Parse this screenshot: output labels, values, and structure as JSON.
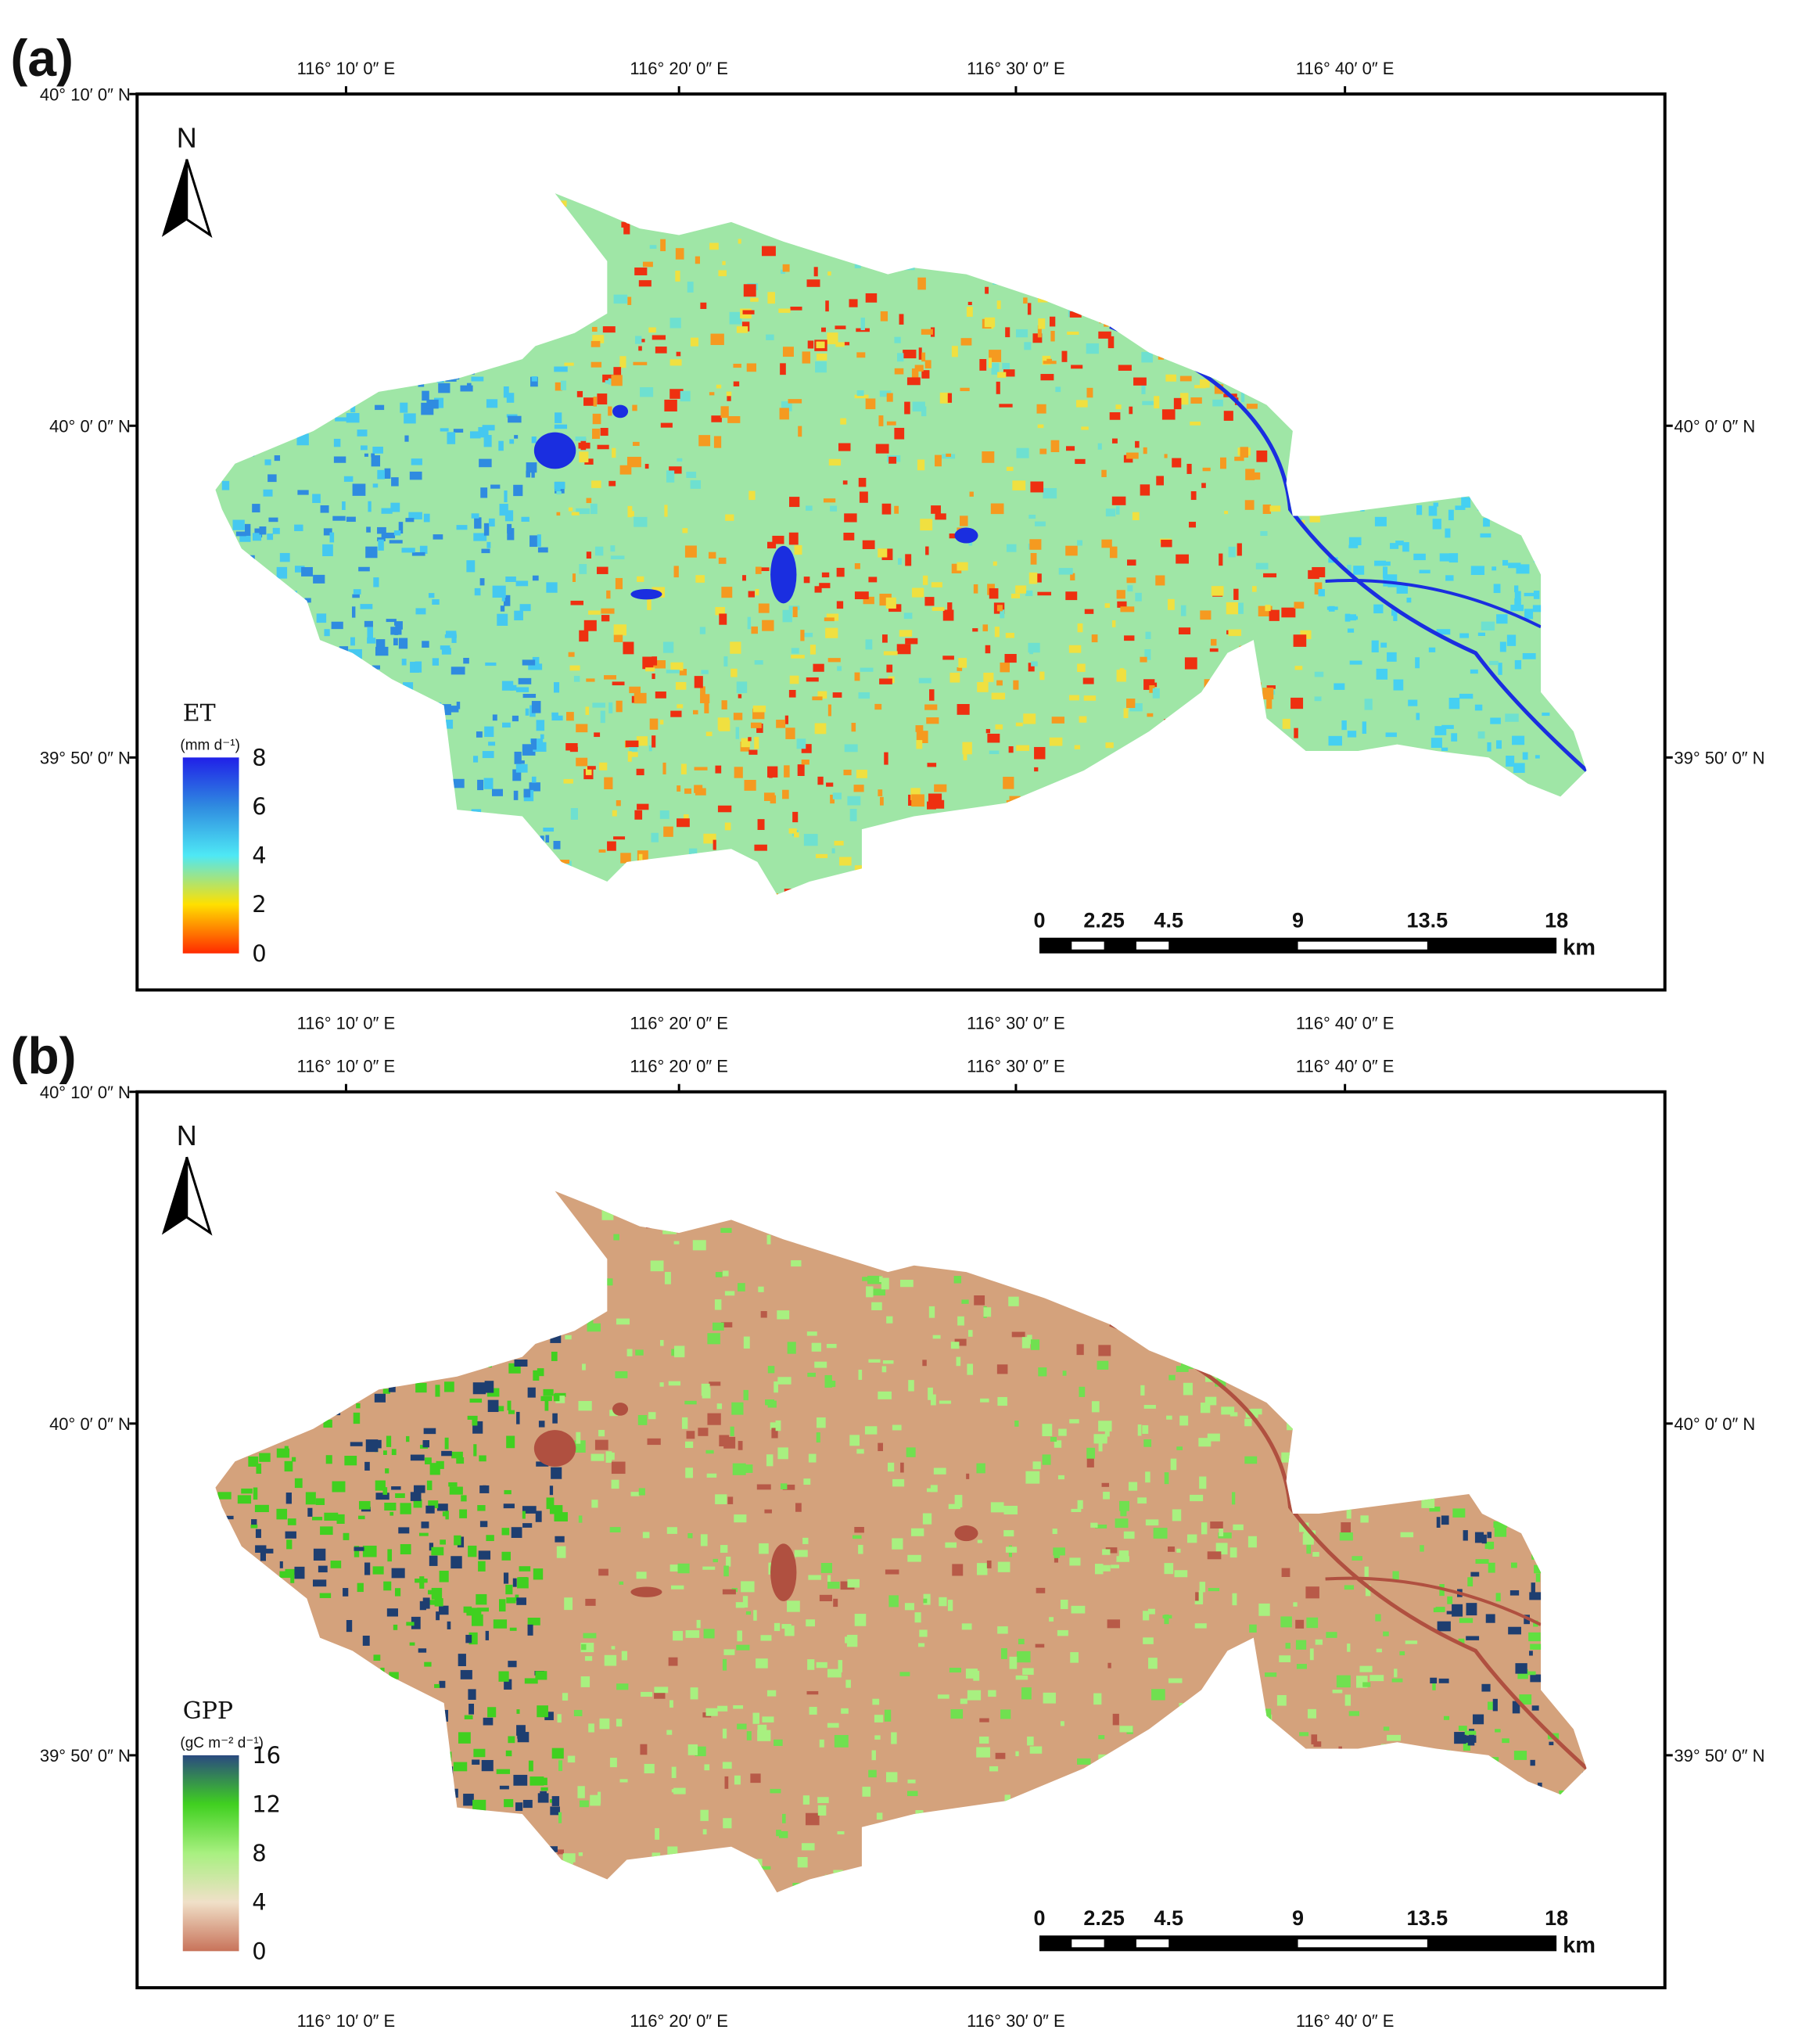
{
  "panels": [
    {
      "label": "(a)",
      "longitudes": [
        "116° 10′ 0″ E",
        "116° 20′ 0″ E",
        "116° 30′ 0″ E",
        "116° 40′ 0″ E"
      ],
      "latitudes": [
        "40° 10′ 0″ N",
        "40° 0′ 0″ N",
        "39° 50′ 0″ N"
      ],
      "north": "N",
      "legend": {
        "title": "ET",
        "unit": "(mm d⁻¹)",
        "ticks": [
          0,
          2,
          4,
          6,
          8
        ],
        "colors": [
          "#ff2a00",
          "#ffe000",
          "#4ee8f5",
          "#2f8be0",
          "#2020e8"
        ]
      },
      "scale_bar": {
        "ticks": [
          0,
          2.25,
          4.5,
          9,
          13.5,
          18
        ],
        "unit": "km"
      }
    },
    {
      "label": "(b)",
      "longitudes": [
        "116° 10′ 0″ E",
        "116° 20′ 0″ E",
        "116° 30′ 0″ E",
        "116° 40′ 0″ E"
      ],
      "latitudes": [
        "40° 10′ 0″ N",
        "40° 0′ 0″ N",
        "39° 50′ 0″ N"
      ],
      "north": "N",
      "legend": {
        "title": "GPP",
        "unit": "(gC m⁻² d⁻¹)",
        "ticks": [
          0,
          4,
          8,
          12,
          16
        ],
        "colors": [
          "#c8735a",
          "#f0e0c8",
          "#a8f080",
          "#40d020",
          "#2a4a80"
        ]
      },
      "scale_bar": {
        "ticks": [
          0,
          2.25,
          4.5,
          9,
          13.5,
          18
        ],
        "unit": "km"
      }
    }
  ]
}
